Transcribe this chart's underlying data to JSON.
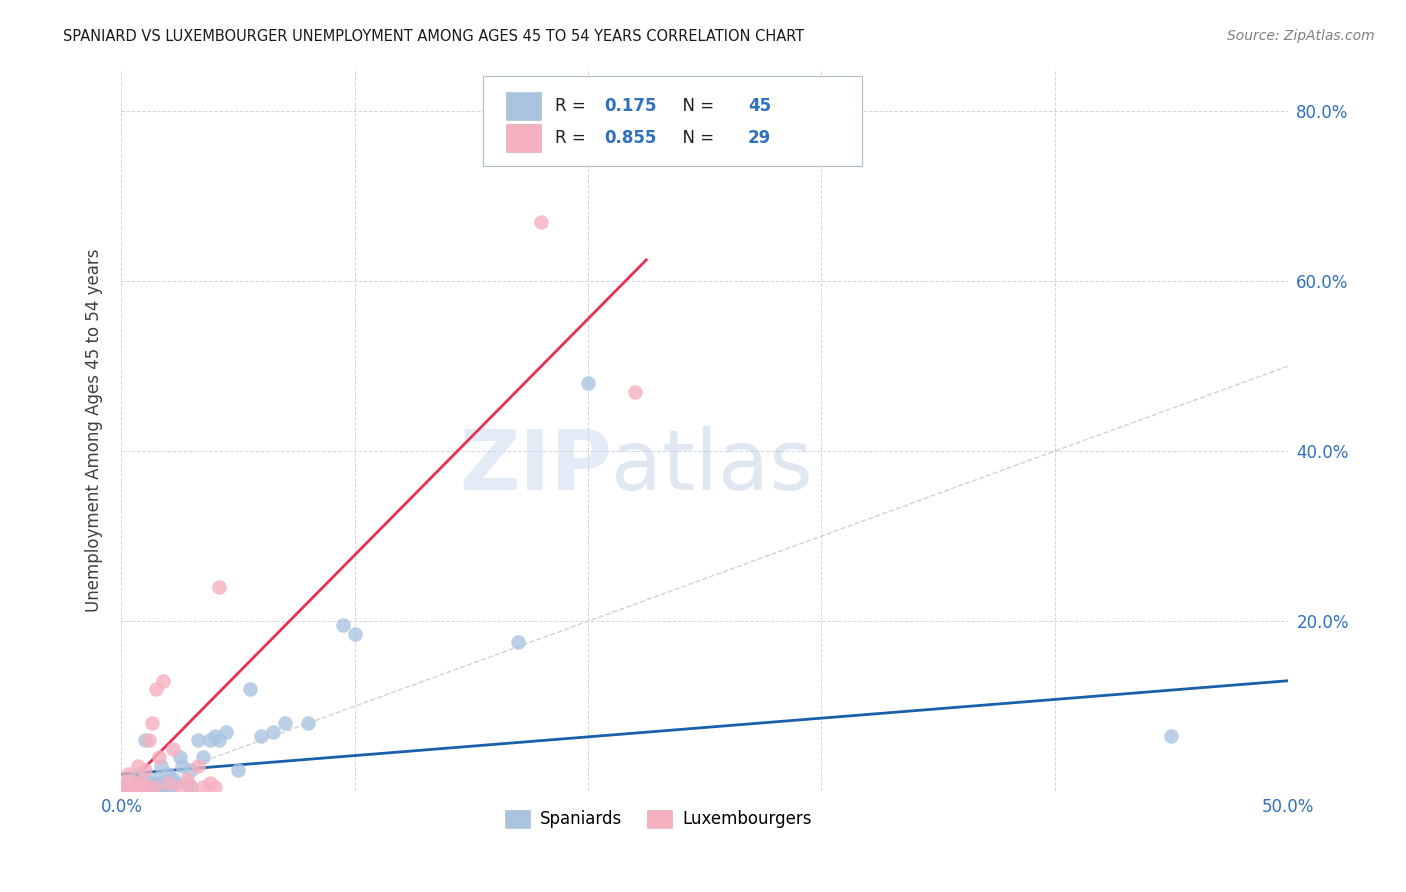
{
  "title": "SPANIARD VS LUXEMBOURGER UNEMPLOYMENT AMONG AGES 45 TO 54 YEARS CORRELATION CHART",
  "source": "Source: ZipAtlas.com",
  "ylabel": "Unemployment Among Ages 45 to 54 years",
  "xlim": [
    0.0,
    0.5
  ],
  "ylim": [
    0.0,
    0.85
  ],
  "legend_r_blue": "0.175",
  "legend_n_blue": "45",
  "legend_r_pink": "0.855",
  "legend_n_pink": "29",
  "blue_color": "#aac4e0",
  "pink_color": "#f5b0c0",
  "blue_line_color": "#1a5faa",
  "pink_line_color": "#e83050",
  "diag_color": "#c0c8d4",
  "watermark_zip": "ZIP",
  "watermark_atlas": "atlas",
  "spaniards_x": [
    0.002,
    0.003,
    0.005,
    0.006,
    0.007,
    0.008,
    0.009,
    0.01,
    0.01,
    0.01,
    0.012,
    0.013,
    0.015,
    0.015,
    0.016,
    0.017,
    0.018,
    0.019,
    0.02,
    0.02,
    0.021,
    0.022,
    0.023,
    0.025,
    0.026,
    0.028,
    0.03,
    0.03,
    0.033,
    0.035,
    0.038,
    0.04,
    0.042,
    0.045,
    0.05,
    0.055,
    0.06,
    0.065,
    0.07,
    0.08,
    0.095,
    0.1,
    0.17,
    0.2,
    0.45
  ],
  "spaniards_y": [
    0.005,
    0.01,
    0.005,
    0.005,
    0.02,
    0.005,
    0.01,
    0.005,
    0.015,
    0.06,
    0.005,
    0.01,
    0.005,
    0.015,
    0.01,
    0.03,
    0.005,
    0.01,
    0.005,
    0.02,
    0.005,
    0.015,
    0.01,
    0.04,
    0.03,
    0.01,
    0.005,
    0.025,
    0.06,
    0.04,
    0.06,
    0.065,
    0.06,
    0.07,
    0.025,
    0.12,
    0.065,
    0.07,
    0.08,
    0.08,
    0.195,
    0.185,
    0.175,
    0.48,
    0.065
  ],
  "luxembourgers_x": [
    0.0,
    0.001,
    0.002,
    0.003,
    0.005,
    0.006,
    0.007,
    0.008,
    0.009,
    0.01,
    0.011,
    0.012,
    0.013,
    0.014,
    0.015,
    0.016,
    0.018,
    0.02,
    0.022,
    0.025,
    0.028,
    0.03,
    0.033,
    0.035,
    0.038,
    0.04,
    0.042,
    0.18,
    0.22
  ],
  "luxembourgers_y": [
    0.005,
    0.01,
    0.005,
    0.02,
    0.005,
    0.01,
    0.03,
    0.005,
    0.01,
    0.025,
    0.005,
    0.06,
    0.08,
    0.005,
    0.12,
    0.04,
    0.13,
    0.01,
    0.05,
    0.005,
    0.015,
    0.005,
    0.03,
    0.005,
    0.01,
    0.005,
    0.24,
    0.67,
    0.47
  ],
  "blue_line_x": [
    0.0,
    0.5
  ],
  "blue_line_y": [
    0.02,
    0.13
  ],
  "pink_line_x": [
    0.0,
    0.225
  ],
  "pink_line_y": [
    0.0,
    0.625
  ],
  "diag_line_x": [
    0.0,
    0.5
  ],
  "diag_line_y": [
    0.0,
    0.5
  ]
}
